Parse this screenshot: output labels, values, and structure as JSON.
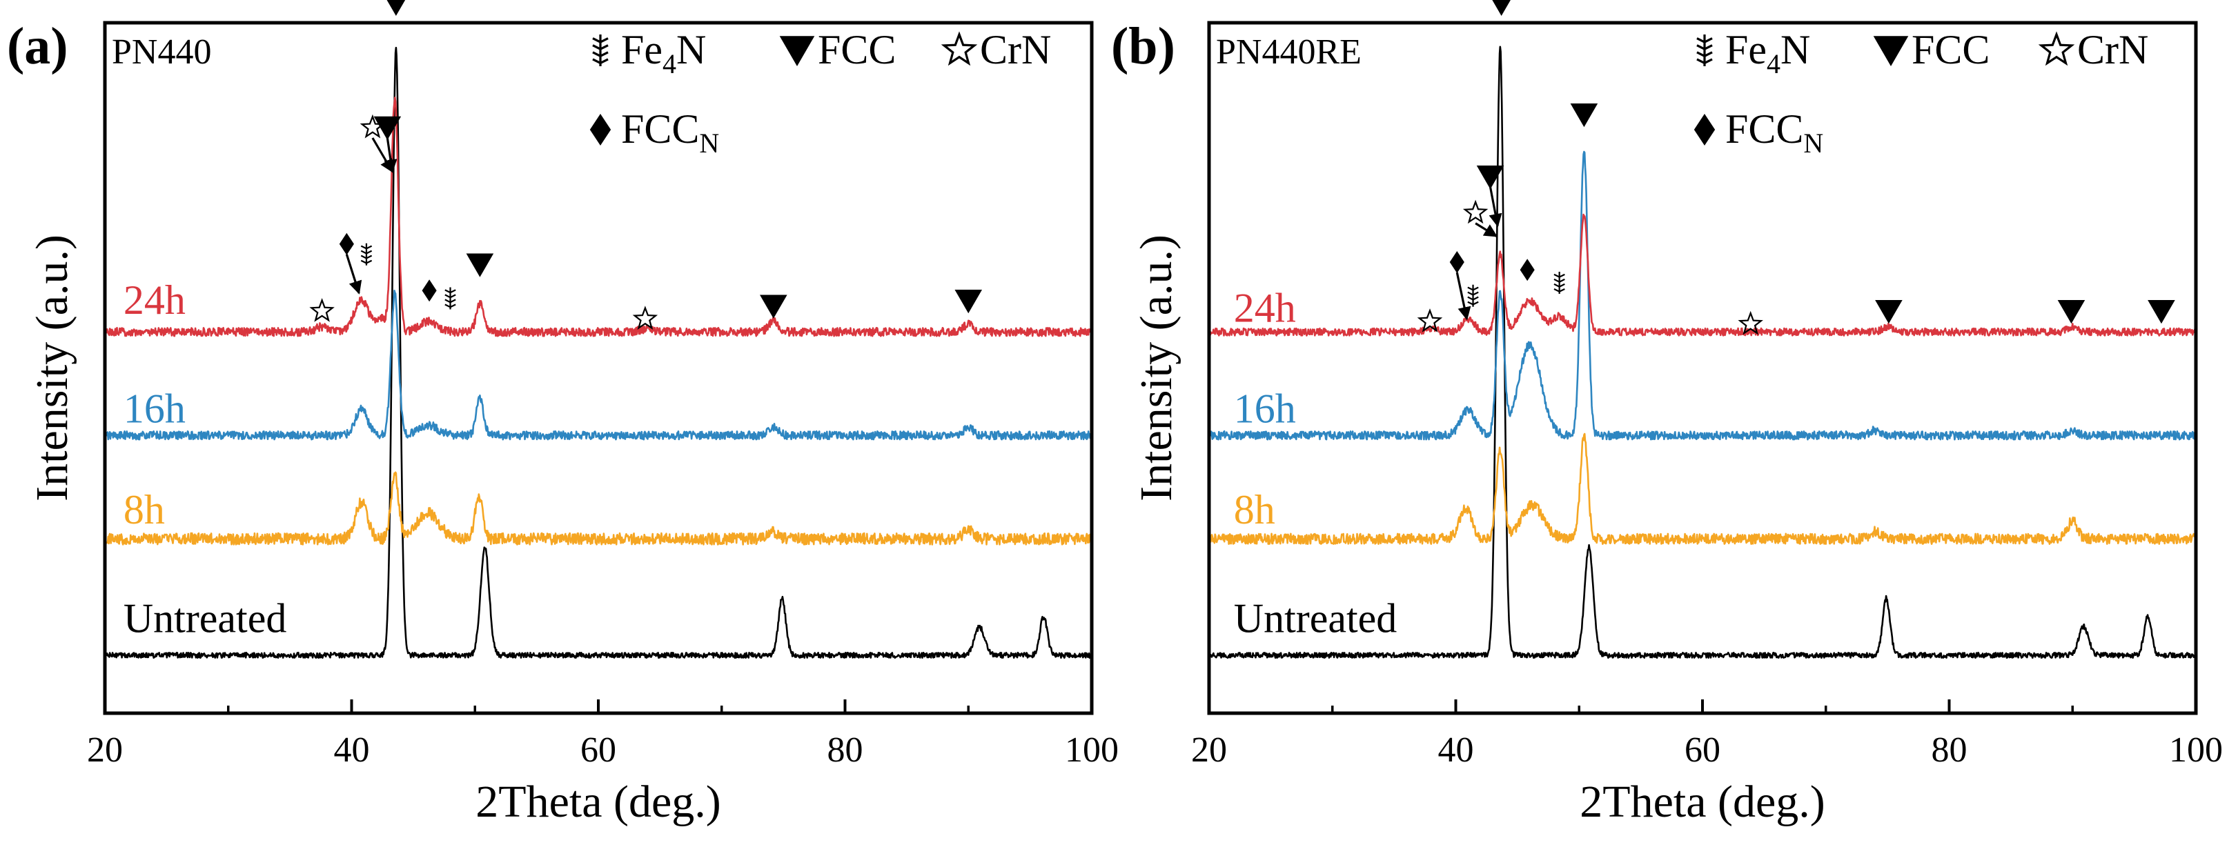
{
  "chart_data": [
    {
      "type": "line",
      "panel_label": "(a)",
      "title": "PN440",
      "xlabel": "2Theta (deg.)",
      "ylabel": "Intensity (a.u.)",
      "xlim": [
        20,
        100
      ],
      "x_ticks": [
        20,
        40,
        60,
        80,
        100
      ],
      "x_tick_labels": [
        "20",
        "40",
        "60",
        "80",
        "100"
      ],
      "legend": [
        {
          "symbol": "fe4n",
          "label": "Fe",
          "sub": "4",
          "suffix": "N"
        },
        {
          "symbol": "fcc",
          "label": "FCC",
          "sub": "",
          "suffix": ""
        },
        {
          "symbol": "crn",
          "label": "CrN",
          "sub": "",
          "suffix": ""
        },
        {
          "symbol": "fccn",
          "label": "FCC",
          "sub": "N",
          "suffix": ""
        }
      ],
      "series": [
        {
          "name": "Untreated",
          "color": "#000000",
          "baseline": 0.0,
          "noise": 0.01,
          "peaks": [
            [
              43.6,
              2.35,
              0.3
            ],
            [
              50.8,
              0.42,
              0.35
            ],
            [
              74.9,
              0.22,
              0.3
            ],
            [
              90.9,
              0.11,
              0.4
            ],
            [
              96.1,
              0.15,
              0.3
            ]
          ]
        },
        {
          "name": "8h",
          "color": "#F5A623",
          "baseline": 0.45,
          "noise": 0.022,
          "peaks": [
            [
              40.8,
              0.14,
              0.5
            ],
            [
              43.5,
              0.25,
              0.3
            ],
            [
              46.2,
              0.1,
              0.9
            ],
            [
              50.3,
              0.17,
              0.3
            ],
            [
              74.1,
              0.03,
              0.4
            ],
            [
              90.0,
              0.04,
              0.4
            ]
          ]
        },
        {
          "name": "16h",
          "color": "#2E86C1",
          "baseline": 0.85,
          "noise": 0.016,
          "peaks": [
            [
              40.8,
              0.1,
              0.5
            ],
            [
              43.5,
              0.55,
              0.3
            ],
            [
              46.2,
              0.04,
              0.8
            ],
            [
              50.4,
              0.14,
              0.3
            ],
            [
              74.2,
              0.03,
              0.4
            ],
            [
              90.0,
              0.03,
              0.4
            ]
          ]
        },
        {
          "name": "24h",
          "color": "#D9363E",
          "baseline": 1.25,
          "noise": 0.016,
          "peaks": [
            [
              37.6,
              0.02,
              0.5
            ],
            [
              40.8,
              0.12,
              0.6
            ],
            [
              42.4,
              0.05,
              0.4
            ],
            [
              43.5,
              0.9,
              0.28
            ],
            [
              46.2,
              0.04,
              0.7
            ],
            [
              50.4,
              0.11,
              0.3
            ],
            [
              63.8,
              0.01,
              0.5
            ],
            [
              74.2,
              0.04,
              0.4
            ],
            [
              90.0,
              0.03,
              0.4
            ]
          ]
        }
      ],
      "markers": [
        {
          "type": "fcc",
          "x": 43.6,
          "y": 2.52
        },
        {
          "type": "crn",
          "x": 41.7,
          "y": 2.04
        },
        {
          "type": "fcc",
          "x": 42.9,
          "y": 2.04
        },
        {
          "type": "fccn",
          "x": 39.6,
          "y": 1.59
        },
        {
          "type": "fe4n",
          "x": 41.2,
          "y": 1.55
        },
        {
          "type": "crn",
          "x": 37.6,
          "y": 1.33
        },
        {
          "type": "fccn",
          "x": 46.3,
          "y": 1.41
        },
        {
          "type": "fe4n",
          "x": 48.0,
          "y": 1.38
        },
        {
          "type": "fcc",
          "x": 50.4,
          "y": 1.51
        },
        {
          "type": "crn",
          "x": 63.8,
          "y": 1.3
        },
        {
          "type": "fcc",
          "x": 74.2,
          "y": 1.35
        },
        {
          "type": "fcc",
          "x": 90.0,
          "y": 1.37
        }
      ],
      "arrows": [
        [
          39.6,
          1.55,
          40.6,
          1.4
        ],
        [
          41.7,
          2.0,
          43.3,
          1.87
        ],
        [
          42.9,
          2.0,
          43.3,
          1.87
        ]
      ],
      "sample_labels": [
        {
          "text": "24h",
          "x": 21.5,
          "y": 1.32,
          "color": "#D9363E"
        },
        {
          "text": "16h",
          "x": 21.5,
          "y": 0.9,
          "color": "#2E86C1"
        },
        {
          "text": "8h",
          "x": 21.5,
          "y": 0.51,
          "color": "#F5A623"
        },
        {
          "text": "Untreated",
          "x": 21.5,
          "y": 0.09,
          "color": "#000000"
        }
      ]
    },
    {
      "type": "line",
      "panel_label": "(b)",
      "title": "PN440RE",
      "xlabel": "2Theta (deg.)",
      "ylabel": "Intensity (a.u.)",
      "xlim": [
        20,
        100
      ],
      "x_ticks": [
        20,
        40,
        60,
        80,
        100
      ],
      "x_tick_labels": [
        "20",
        "40",
        "60",
        "80",
        "100"
      ],
      "legend": [
        {
          "symbol": "fe4n",
          "label": "Fe",
          "sub": "4",
          "suffix": "N"
        },
        {
          "symbol": "fcc",
          "label": "FCC",
          "sub": "",
          "suffix": ""
        },
        {
          "symbol": "crn",
          "label": "CrN",
          "sub": "",
          "suffix": ""
        },
        {
          "symbol": "fccn",
          "label": "FCC",
          "sub": "N",
          "suffix": ""
        }
      ],
      "series": [
        {
          "name": "Untreated",
          "color": "#000000",
          "baseline": 0.0,
          "noise": 0.01,
          "peaks": [
            [
              43.6,
              2.35,
              0.3
            ],
            [
              50.8,
              0.42,
              0.35
            ],
            [
              74.9,
              0.22,
              0.3
            ],
            [
              90.9,
              0.11,
              0.4
            ],
            [
              96.1,
              0.15,
              0.3
            ]
          ]
        },
        {
          "name": "8h",
          "color": "#F5A623",
          "baseline": 0.45,
          "noise": 0.02,
          "peaks": [
            [
              40.8,
              0.12,
              0.5
            ],
            [
              43.6,
              0.35,
              0.3
            ],
            [
              46.2,
              0.13,
              0.9
            ],
            [
              50.4,
              0.4,
              0.3
            ],
            [
              74.0,
              0.03,
              0.4
            ],
            [
              90.0,
              0.07,
              0.4
            ]
          ]
        },
        {
          "name": "16h",
          "color": "#2E86C1",
          "baseline": 0.85,
          "noise": 0.016,
          "peaks": [
            [
              41.0,
              0.1,
              0.6
            ],
            [
              43.6,
              0.55,
              0.3
            ],
            [
              46.0,
              0.35,
              0.9
            ],
            [
              50.4,
              1.1,
              0.3
            ],
            [
              74.0,
              0.02,
              0.4
            ],
            [
              90.0,
              0.02,
              0.4
            ]
          ]
        },
        {
          "name": "24h",
          "color": "#D9363E",
          "baseline": 1.25,
          "noise": 0.014,
          "peaks": [
            [
              38.0,
              0.01,
              0.5
            ],
            [
              41.0,
              0.05,
              0.5
            ],
            [
              43.6,
              0.3,
              0.3
            ],
            [
              46.0,
              0.12,
              0.8
            ],
            [
              48.4,
              0.06,
              0.6
            ],
            [
              50.4,
              0.45,
              0.3
            ],
            [
              75.0,
              0.02,
              0.4
            ],
            [
              90.0,
              0.02,
              0.4
            ]
          ]
        }
      ],
      "markers": [
        {
          "type": "fcc",
          "x": 43.7,
          "y": 2.52
        },
        {
          "type": "fcc",
          "x": 50.4,
          "y": 2.09
        },
        {
          "type": "fcc",
          "x": 42.8,
          "y": 1.85
        },
        {
          "type": "crn",
          "x": 41.6,
          "y": 1.71
        },
        {
          "type": "fccn",
          "x": 40.1,
          "y": 1.52
        },
        {
          "type": "fe4n",
          "x": 41.4,
          "y": 1.39
        },
        {
          "type": "fccn",
          "x": 45.8,
          "y": 1.49
        },
        {
          "type": "fe4n",
          "x": 48.4,
          "y": 1.44
        },
        {
          "type": "crn",
          "x": 37.9,
          "y": 1.29
        },
        {
          "type": "crn",
          "x": 63.9,
          "y": 1.28
        },
        {
          "type": "fcc",
          "x": 75.1,
          "y": 1.33
        },
        {
          "type": "fcc",
          "x": 89.9,
          "y": 1.33
        },
        {
          "type": "fcc",
          "x": 97.2,
          "y": 1.33
        }
      ],
      "arrows": [
        [
          40.1,
          1.48,
          40.9,
          1.3
        ],
        [
          41.6,
          1.67,
          43.3,
          1.62
        ],
        [
          42.8,
          1.81,
          43.4,
          1.66
        ]
      ],
      "sample_labels": [
        {
          "text": "24h",
          "x": 22.0,
          "y": 1.29,
          "color": "#D9363E"
        },
        {
          "text": "16h",
          "x": 22.0,
          "y": 0.9,
          "color": "#2E86C1"
        },
        {
          "text": "8h",
          "x": 22.0,
          "y": 0.51,
          "color": "#F5A623"
        },
        {
          "text": "Untreated",
          "x": 22.0,
          "y": 0.09,
          "color": "#000000"
        }
      ]
    }
  ]
}
